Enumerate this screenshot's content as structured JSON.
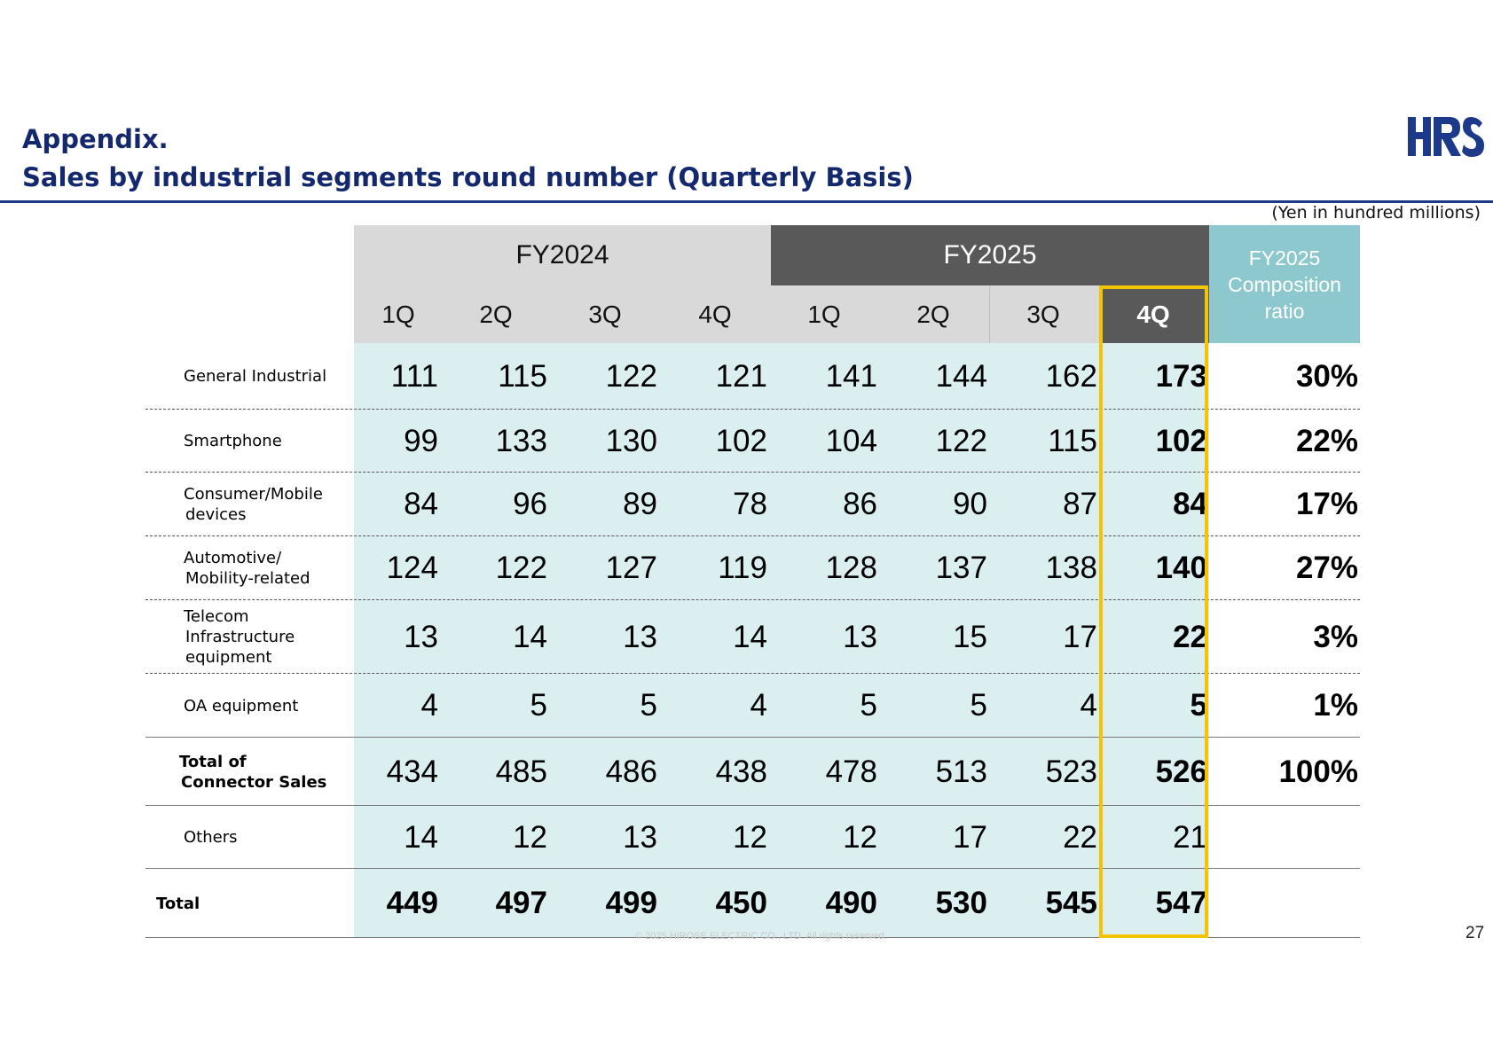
{
  "title": {
    "line1": "Appendix.",
    "line2": "Sales by industrial segments round number (Quarterly Basis)"
  },
  "logo_text": "HRS",
  "unit_note": "(Yen in hundred millions)",
  "table": {
    "fiscal_years": [
      "FY2024",
      "FY2025"
    ],
    "composition_header": [
      "FY2025",
      "Composition",
      "ratio"
    ],
    "quarters": [
      "1Q",
      "2Q",
      "3Q",
      "4Q",
      "1Q",
      "2Q",
      "3Q",
      "4Q"
    ],
    "rows": [
      {
        "label": [
          "General Industrial"
        ],
        "values": [
          "111",
          "115",
          "122",
          "121",
          "141",
          "144",
          "162",
          "173"
        ],
        "ratio": "30%"
      },
      {
        "label": [
          "Smartphone"
        ],
        "values": [
          "99",
          "133",
          "130",
          "102",
          "104",
          "122",
          "115",
          "102"
        ],
        "ratio": "22%"
      },
      {
        "label": [
          "Consumer/Mobile",
          "devices"
        ],
        "values": [
          "84",
          "96",
          "89",
          "78",
          "86",
          "90",
          "87",
          "84"
        ],
        "ratio": "17%"
      },
      {
        "label": [
          "Automotive/",
          "Mobility-related"
        ],
        "values": [
          "124",
          "122",
          "127",
          "119",
          "128",
          "137",
          "138",
          "140"
        ],
        "ratio": "27%"
      },
      {
        "label": [
          "Telecom",
          "Infrastructure",
          "equipment"
        ],
        "values": [
          "13",
          "14",
          "13",
          "14",
          "13",
          "15",
          "17",
          "22"
        ],
        "ratio": "3%"
      },
      {
        "label": [
          "OA equipment"
        ],
        "values": [
          "4",
          "5",
          "5",
          "4",
          "5",
          "5",
          "4",
          "5"
        ],
        "ratio": "1%"
      },
      {
        "label": [
          "Total of",
          "Connector Sales"
        ],
        "values": [
          "434",
          "485",
          "486",
          "438",
          "478",
          "513",
          "523",
          "526"
        ],
        "ratio": "100%"
      },
      {
        "label": [
          "Others"
        ],
        "values": [
          "14",
          "12",
          "13",
          "12",
          "12",
          "17",
          "22",
          "21"
        ],
        "ratio": ""
      },
      {
        "label": [
          "Total"
        ],
        "values": [
          "449",
          "497",
          "499",
          "450",
          "490",
          "530",
          "545",
          "547"
        ],
        "ratio": ""
      }
    ]
  },
  "copyright": "© 2025 HIROSE ELECTRIC CO., LTD. All rights reserved.",
  "page_number": "27",
  "colors": {
    "title": "#14286e",
    "fy2025_header": "#595959",
    "composition_header": "#8ec8cf",
    "body_fill": "#dceff0",
    "highlight_border": "#f5c400"
  }
}
